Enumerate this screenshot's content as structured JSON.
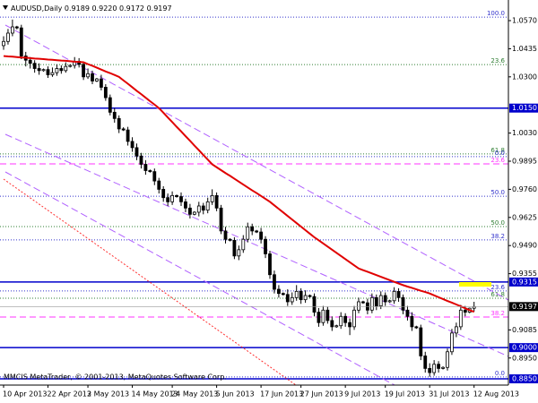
{
  "chart_data": {
    "type": "candlestick",
    "title": "AUDUSD,Daily",
    "header_labels": [
      "0.9189",
      "0.9220",
      "0.9172",
      "0.9197"
    ],
    "copyright": "MMCIS MetaTrader, © 2001-2013, MetaQuotes Software Corp.",
    "categories": [
      "10 Apr 2013",
      null,
      null,
      null,
      null,
      null,
      null,
      null,
      null,
      null,
      "22 Apr 2013",
      null,
      null,
      null,
      null,
      null,
      null,
      null,
      null,
      "2 May 2013",
      null,
      null,
      null,
      null,
      null,
      null,
      null,
      null,
      null,
      "14 May 2013",
      null,
      null,
      null,
      null,
      null,
      null,
      null,
      null,
      "24 May 2013",
      null,
      null,
      null,
      null,
      null,
      null,
      null,
      null,
      null,
      "5 Jun 2013",
      null,
      null,
      null,
      null,
      null,
      null,
      null,
      null,
      null,
      "17 Jun 2013",
      null,
      null,
      null,
      null,
      null,
      null,
      null,
      null,
      "27 Jun 2013",
      null,
      null,
      null,
      null,
      null,
      null,
      null,
      null,
      null,
      "9 Jul 2013",
      null,
      null,
      null,
      null,
      null,
      null,
      null,
      null,
      "19 Jul 2013",
      null,
      null,
      null,
      null,
      null,
      null,
      null,
      null,
      null,
      "31 Jul 2013",
      null,
      null,
      null,
      null,
      null,
      null,
      null,
      null,
      null,
      "12 Aug 2013"
    ],
    "ohlc": [
      [
        1.045,
        1.0495,
        1.043,
        1.047
      ],
      [
        1.047,
        1.053,
        1.0455,
        1.051
      ],
      [
        1.051,
        1.0575,
        1.0495,
        1.054
      ],
      [
        1.054,
        1.0545,
        1.0528,
        1.0535
      ],
      [
        1.0535,
        1.055,
        1.0385,
        1.04
      ],
      [
        1.04,
        1.042,
        1.035,
        1.038
      ],
      [
        1.038,
        1.0395,
        1.034,
        1.0365
      ],
      [
        1.0365,
        1.038,
        1.032,
        1.034
      ],
      [
        1.034,
        1.0365,
        1.031,
        1.033
      ],
      [
        1.033,
        1.034,
        1.0325,
        1.0335
      ],
      [
        1.0335,
        1.035,
        1.0295,
        1.031
      ],
      [
        1.031,
        1.0345,
        1.03,
        1.032
      ],
      [
        1.032,
        1.036,
        1.0305,
        1.034
      ],
      [
        1.034,
        1.0355,
        1.0315,
        1.033
      ],
      [
        1.033,
        1.037,
        1.032,
        1.035
      ],
      [
        1.035,
        1.036,
        1.0345,
        1.0355
      ],
      [
        1.0355,
        1.0395,
        1.034,
        1.0375
      ],
      [
        1.0375,
        1.039,
        1.0345,
        1.036
      ],
      [
        1.036,
        1.037,
        1.0285,
        1.03
      ],
      [
        1.03,
        1.034,
        1.029,
        1.0315
      ],
      [
        1.0315,
        1.033,
        1.0265,
        1.028
      ],
      [
        1.028,
        1.0295,
        1.0275,
        1.029
      ],
      [
        1.029,
        1.031,
        1.0235,
        1.025
      ],
      [
        1.025,
        1.0265,
        1.0185,
        1.02
      ],
      [
        1.02,
        1.0215,
        1.0115,
        1.013
      ],
      [
        1.013,
        1.015,
        1.008,
        1.01
      ],
      [
        1.01,
        1.0115,
        1.003,
        1.005
      ],
      [
        1.005,
        1.0058,
        1.004,
        1.0045
      ],
      [
        1.0045,
        1.006,
        0.997,
        0.999
      ],
      [
        0.999,
        1.001,
        0.994,
        0.996
      ],
      [
        0.996,
        0.998,
        0.99,
        0.992
      ],
      [
        0.992,
        0.9935,
        0.986,
        0.988
      ],
      [
        0.988,
        0.99,
        0.983,
        0.985
      ],
      [
        0.985,
        0.9855,
        0.984,
        0.9845
      ],
      [
        0.9845,
        0.986,
        0.978,
        0.98
      ],
      [
        0.98,
        0.9815,
        0.974,
        0.976
      ],
      [
        0.976,
        0.9775,
        0.97,
        0.972
      ],
      [
        0.972,
        0.974,
        0.968,
        0.97
      ],
      [
        0.97,
        0.975,
        0.9685,
        0.973
      ],
      [
        0.973,
        0.9735,
        0.972,
        0.9725
      ],
      [
        0.9725,
        0.9745,
        0.968,
        0.97
      ],
      [
        0.97,
        0.9715,
        0.965,
        0.967
      ],
      [
        0.967,
        0.969,
        0.962,
        0.964
      ],
      [
        0.964,
        0.9655,
        0.9635,
        0.965
      ],
      [
        0.965,
        0.97,
        0.963,
        0.968
      ],
      [
        0.968,
        0.9695,
        0.964,
        0.966
      ],
      [
        0.966,
        0.972,
        0.9645,
        0.97
      ],
      [
        0.97,
        0.976,
        0.9685,
        0.973
      ],
      [
        0.973,
        0.9745,
        0.9655,
        0.967
      ],
      [
        0.967,
        0.9685,
        0.9545,
        0.956
      ],
      [
        0.956,
        0.958,
        0.95,
        0.952
      ],
      [
        0.952,
        0.9525,
        0.951,
        0.9515
      ],
      [
        0.9515,
        0.953,
        0.9425,
        0.944
      ],
      [
        0.944,
        0.949,
        0.942,
        0.947
      ],
      [
        0.947,
        0.954,
        0.9455,
        0.952
      ],
      [
        0.952,
        0.96,
        0.9505,
        0.958
      ],
      [
        0.958,
        0.9595,
        0.954,
        0.956
      ],
      [
        0.956,
        0.9565,
        0.955,
        0.9555
      ],
      [
        0.9555,
        0.9575,
        0.95,
        0.952
      ],
      [
        0.952,
        0.9535,
        0.943,
        0.945
      ],
      [
        0.945,
        0.9465,
        0.933,
        0.935
      ],
      [
        0.935,
        0.937,
        0.926,
        0.928
      ],
      [
        0.928,
        0.93,
        0.924,
        0.926
      ],
      [
        0.926,
        0.9265,
        0.925,
        0.9255
      ],
      [
        0.9255,
        0.928,
        0.92,
        0.922
      ],
      [
        0.922,
        0.9265,
        0.9205,
        0.924
      ],
      [
        0.924,
        0.93,
        0.9225,
        0.927
      ],
      [
        0.927,
        0.9285,
        0.921,
        0.923
      ],
      [
        0.923,
        0.9275,
        0.9215,
        0.925
      ],
      [
        0.925,
        0.9255,
        0.924,
        0.9245
      ],
      [
        0.9245,
        0.926,
        0.915,
        0.917
      ],
      [
        0.917,
        0.919,
        0.91,
        0.912
      ],
      [
        0.912,
        0.92,
        0.9105,
        0.918
      ],
      [
        0.918,
        0.9195,
        0.9115,
        0.913
      ],
      [
        0.913,
        0.915,
        0.908,
        0.91
      ],
      [
        0.91,
        0.911,
        0.9095,
        0.9105
      ],
      [
        0.9105,
        0.917,
        0.909,
        0.915
      ],
      [
        0.915,
        0.9165,
        0.91,
        0.912
      ],
      [
        0.912,
        0.914,
        0.906,
        0.91
      ],
      [
        0.91,
        0.92,
        0.9085,
        0.918
      ],
      [
        0.918,
        0.924,
        0.9165,
        0.922
      ],
      [
        0.922,
        0.9225,
        0.921,
        0.9215
      ],
      [
        0.9215,
        0.9235,
        0.916,
        0.918
      ],
      [
        0.918,
        0.926,
        0.9165,
        0.924
      ],
      [
        0.924,
        0.9255,
        0.918,
        0.92
      ],
      [
        0.92,
        0.927,
        0.9185,
        0.925
      ],
      [
        0.925,
        0.9265,
        0.92,
        0.922
      ],
      [
        0.922,
        0.923,
        0.9215,
        0.9225
      ],
      [
        0.9225,
        0.929,
        0.921,
        0.927
      ],
      [
        0.927,
        0.9285,
        0.922,
        0.924
      ],
      [
        0.924,
        0.9255,
        0.916,
        0.918
      ],
      [
        0.918,
        0.92,
        0.913,
        0.915
      ],
      [
        0.915,
        0.917,
        0.908,
        0.91
      ],
      [
        0.91,
        0.9105,
        0.909,
        0.9095
      ],
      [
        0.9095,
        0.911,
        0.894,
        0.896
      ],
      [
        0.896,
        0.898,
        0.888,
        0.89
      ],
      [
        0.89,
        0.8925,
        0.886,
        0.888
      ],
      [
        0.888,
        0.894,
        0.8865,
        0.892
      ],
      [
        0.892,
        0.8935,
        0.888,
        0.89
      ],
      [
        0.89,
        0.891,
        0.8895,
        0.8905
      ],
      [
        0.8905,
        0.8995,
        0.889,
        0.898
      ],
      [
        0.898,
        0.909,
        0.8965,
        0.907
      ],
      [
        0.907,
        0.912,
        0.905,
        0.91
      ],
      [
        0.91,
        0.9205,
        0.9085,
        0.918
      ],
      [
        0.918,
        0.92,
        0.915,
        0.917
      ],
      [
        0.917,
        0.9192,
        0.9165,
        0.9189
      ],
      [
        0.9189,
        0.922,
        0.9172,
        0.9197
      ]
    ],
    "ma": [
      1.04,
      1.0398,
      1.0397,
      1.0395,
      1.0393,
      1.0392,
      1.039,
      1.0388,
      1.0387,
      1.0385,
      1.0383,
      1.0382,
      1.038,
      1.0378,
      1.0377,
      1.0375,
      1.0373,
      1.0372,
      1.037,
      1.0361,
      1.0353,
      1.0344,
      1.0335,
      1.0326,
      1.0318,
      1.0309,
      1.03,
      1.0283,
      1.0267,
      1.025,
      1.0233,
      1.0217,
      1.02,
      1.0183,
      1.0167,
      1.015,
      1.0128,
      1.0105,
      1.0083,
      1.006,
      1.0038,
      1.0015,
      0.9993,
      0.997,
      0.9948,
      0.9925,
      0.9903,
      0.988,
      0.9866,
      0.9852,
      0.9838,
      0.9825,
      0.9811,
      0.9797,
      0.9783,
      0.9769,
      0.9755,
      0.9742,
      0.9728,
      0.9714,
      0.97,
      0.9683,
      0.9666,
      0.9649,
      0.9632,
      0.9615,
      0.9598,
      0.9581,
      0.9564,
      0.9547,
      0.953,
      0.9515,
      0.95,
      0.9485,
      0.947,
      0.9455,
      0.944,
      0.9425,
      0.941,
      0.9395,
      0.938,
      0.9372,
      0.9364,
      0.9356,
      0.9348,
      0.934,
      0.9332,
      0.9324,
      0.9316,
      0.9308,
      0.93,
      0.9293,
      0.9287,
      0.928,
      0.9273,
      0.9267,
      0.926,
      0.9251,
      0.9242,
      0.9233,
      0.9224,
      0.9216,
      0.9207,
      0.9198,
      0.9189,
      0.918,
      0.9172
    ],
    "ma_color": "#e00000",
    "up_fill": "#ffffff",
    "down_fill": "#000000",
    "candle_color": "#000000",
    "ylim": [
      0.882,
      1.0669
    ],
    "yticks": [
      {
        "value": 1.057,
        "label": "1.0570"
      },
      {
        "value": 1.0435,
        "label": "1.0435"
      },
      {
        "value": 1.03,
        "label": "1.0300"
      },
      {
        "value": 1.003,
        "label": "1.0030"
      },
      {
        "value": 0.9895,
        "label": "0.9895"
      },
      {
        "value": 0.976,
        "label": "0.9760"
      },
      {
        "value": 0.9625,
        "label": "0.9625"
      },
      {
        "value": 0.949,
        "label": "0.9490"
      },
      {
        "value": 0.9355,
        "label": "0.9355"
      },
      {
        "value": 0.9085,
        "label": "0.9085"
      },
      {
        "value": 0.895,
        "label": "0.8950"
      }
    ],
    "levels": [
      {
        "value": 1.015,
        "label": "1.0150",
        "color": "#0000cc"
      },
      {
        "value": 0.9315,
        "label": "0.9315",
        "color": "#0000cc"
      },
      {
        "value": 0.9,
        "label": "0.9000",
        "color": "#0000cc"
      },
      {
        "value": 0.885,
        "label": "0.8850",
        "color": "#0000cc"
      }
    ],
    "fib_levels": [
      {
        "value": 1.0587,
        "label": "100.0",
        "color": "#3333cc",
        "style": "dotted"
      },
      {
        "value": 1.0359,
        "label": "23.6",
        "color": "#2e7d32",
        "style": "dotted"
      },
      {
        "value": 0.993,
        "label": "61.8",
        "color": "#2e7d32",
        "style": "dotted"
      },
      {
        "value": 0.9917,
        "label": "0.0",
        "color": "#3333cc",
        "style": "dotted"
      },
      {
        "value": 0.9882,
        "label": "23.6",
        "color": "#ff33ff",
        "style": "dashed"
      },
      {
        "value": 0.9727,
        "label": "50.0",
        "color": "#3333cc",
        "style": "dotted"
      },
      {
        "value": 0.9581,
        "label": "50.0",
        "color": "#2e7d32",
        "style": "dotted"
      },
      {
        "value": 0.9517,
        "label": "38.2",
        "color": "#3333cc",
        "style": "dotted"
      },
      {
        "value": 0.9272,
        "label": "23.6",
        "color": "#3333cc",
        "style": "dotted"
      },
      {
        "value": 0.9237,
        "label": "61.8",
        "color": "#2e7d32",
        "style": "dotted"
      },
      {
        "value": 0.9147,
        "label": "38.2",
        "color": "#ff33ff",
        "style": "dashed"
      },
      {
        "value": 0.8859,
        "label": "0.0",
        "color": "#3333cc",
        "style": "dotted"
      }
    ],
    "grid": false
  }
}
